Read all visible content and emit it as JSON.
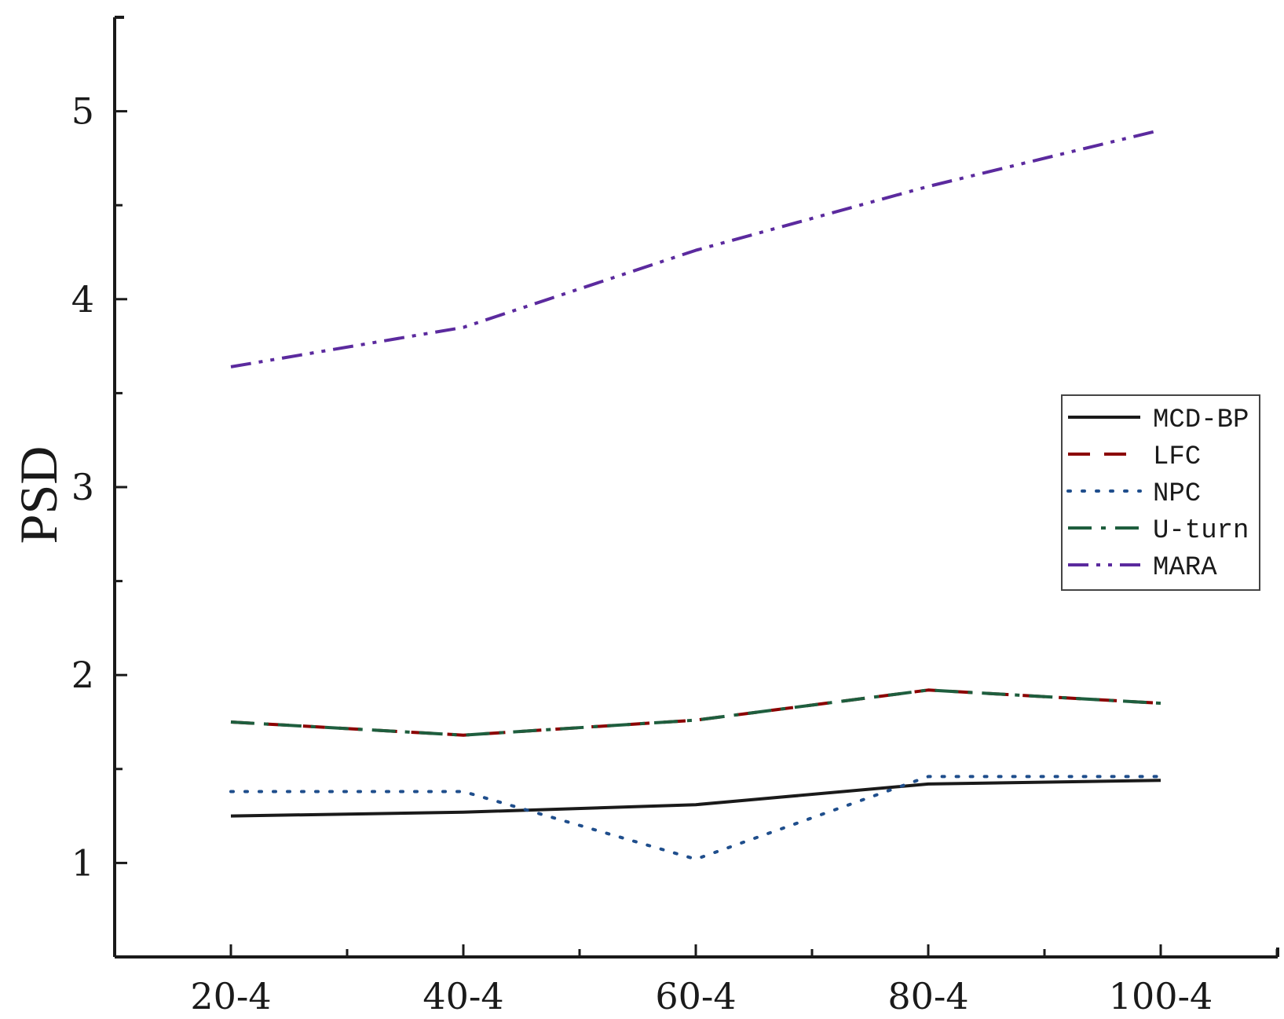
{
  "chart_data": {
    "type": "line",
    "title": "",
    "xlabel": "",
    "ylabel": "PSD",
    "categories": [
      "20-4",
      "40-4",
      "60-4",
      "80-4",
      "100-4"
    ],
    "ylim": [
      0.5,
      5.5
    ],
    "yticks": [
      1,
      2,
      3,
      4,
      5
    ],
    "grid": false,
    "legend_position": "right",
    "series": [
      {
        "name": "MCD-BP",
        "values": [
          1.25,
          1.27,
          1.31,
          1.42,
          1.44
        ],
        "color": "#1a1a1a",
        "style": "solid"
      },
      {
        "name": "LFC",
        "values": [
          1.75,
          1.68,
          1.76,
          1.92,
          1.85
        ],
        "color": "#8b0000",
        "style": "dashed"
      },
      {
        "name": "NPC",
        "values": [
          1.38,
          1.38,
          1.02,
          1.46,
          1.46
        ],
        "color": "#1f4e8c",
        "style": "dotted"
      },
      {
        "name": "U-turn",
        "values": [
          1.75,
          1.68,
          1.76,
          1.92,
          1.85
        ],
        "color": "#1e5e3e",
        "style": "dashdot"
      },
      {
        "name": "MARA",
        "values": [
          3.64,
          3.85,
          4.26,
          4.6,
          4.9
        ],
        "color": "#5b2a9e",
        "style": "dashdotdot"
      }
    ]
  }
}
